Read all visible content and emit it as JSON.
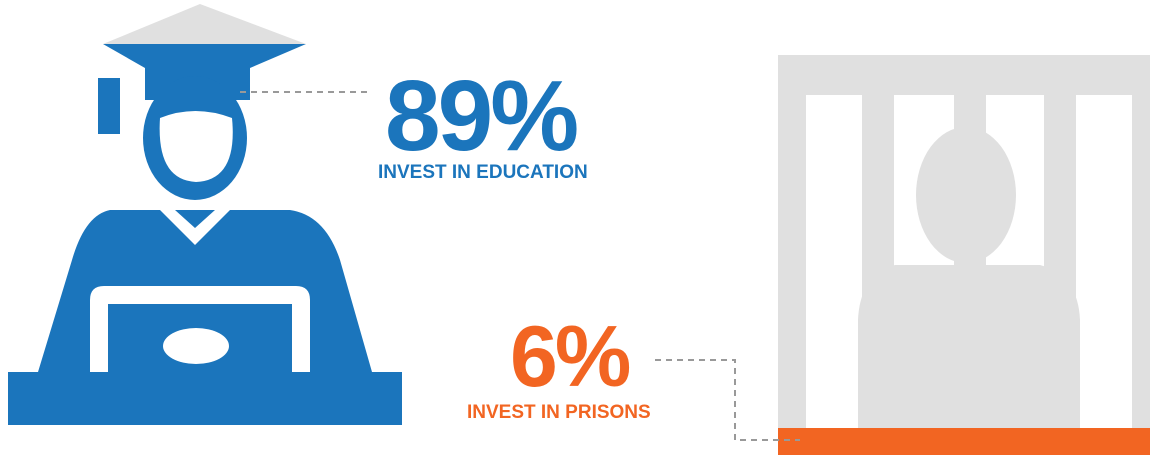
{
  "stats": [
    {
      "value": "89%",
      "label": "INVEST IN EDUCATION"
    },
    {
      "value": "6%",
      "label": "INVEST IN PRISONS"
    }
  ]
}
